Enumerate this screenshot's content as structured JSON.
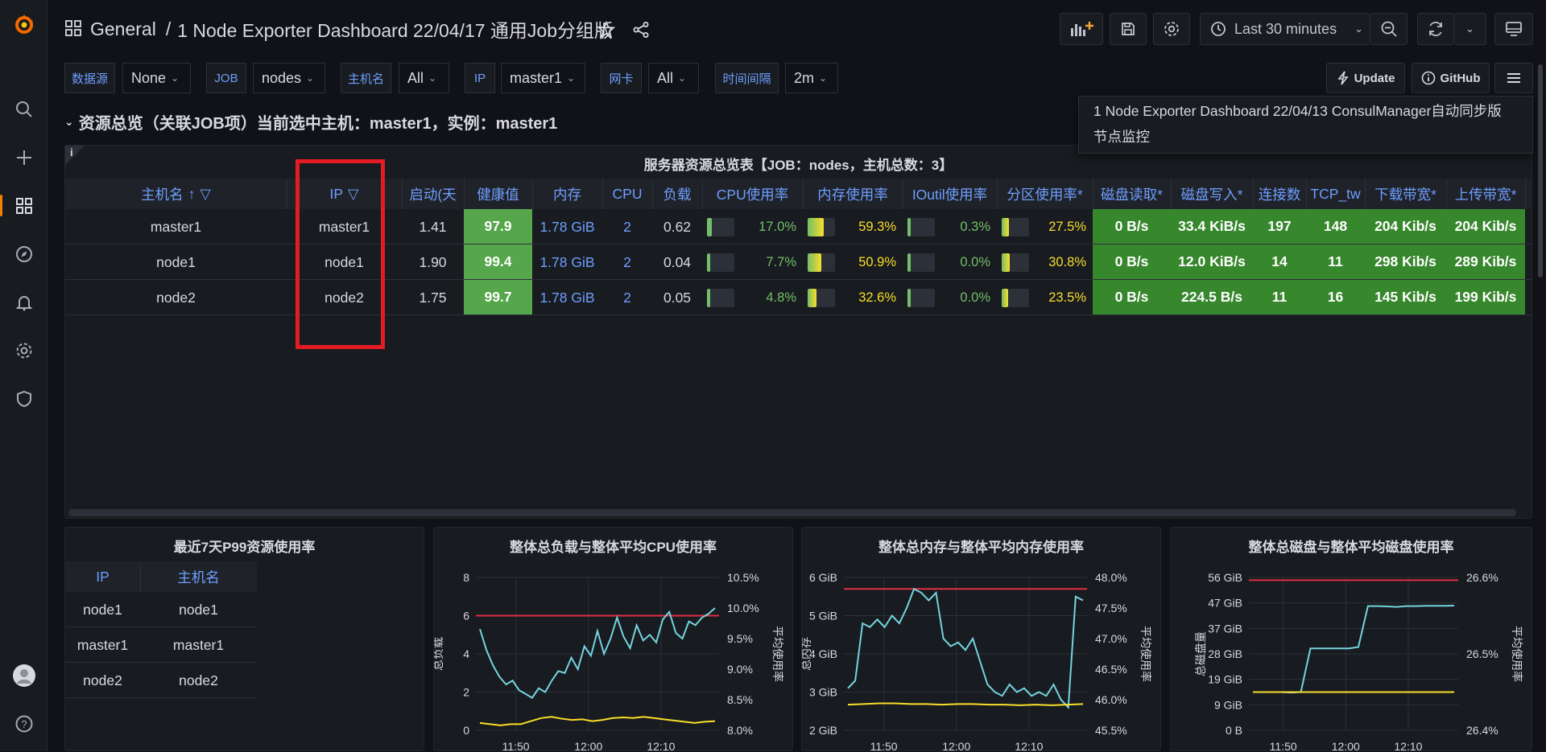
{
  "header": {
    "folder": "General",
    "separator": "/",
    "dashboard_title": "1 Node Exporter Dashboard 22/04/17 通用Job分组版",
    "time_range": "Last 30 minutes"
  },
  "variables": [
    {
      "label": "数据源",
      "value": "None"
    },
    {
      "label": "JOB",
      "value": "nodes"
    },
    {
      "label": "主机名",
      "value": "All"
    },
    {
      "label": "IP",
      "value": "master1"
    },
    {
      "label": "网卡",
      "value": "All"
    },
    {
      "label": "时间间隔",
      "value": "2m"
    }
  ],
  "links": {
    "update": "Update",
    "github": "GitHub"
  },
  "dropdown_links": [
    "1 Node Exporter Dashboard 22/04/13 ConsulManager自动同步版",
    "节点监控"
  ],
  "row_title": "资源总览（关联JOB项）当前选中主机：master1，实例：master1",
  "overview": {
    "title": "服务器资源总览表【JOB：nodes，主机总数：3】",
    "info_icon": "i",
    "columns": [
      "主机名",
      "IP",
      "启动(天",
      "健康值",
      "内存",
      "CPU",
      "负载",
      "CPU使用率",
      "内存使用率",
      "IOutil使用率",
      "分区使用率*",
      "磁盘读取*",
      "磁盘写入*",
      "连接数",
      "TCP_tw",
      "下载带宽*",
      "上传带宽*"
    ],
    "sort_indicator": "↑",
    "rows": [
      {
        "host": "master1",
        "ip": "master1",
        "uptime": "1.41",
        "health": "97.9",
        "mem": "1.78 GiB",
        "cpu": "2",
        "load": "0.62",
        "cpu_pct": "17.0%",
        "cpu_frac": 0.17,
        "mem_pct": "59.3%",
        "mem_frac": 0.593,
        "io_pct": "0.3%",
        "io_frac": 0.003,
        "part_pct": "27.5%",
        "part_frac": 0.275,
        "disk_read": "0 B/s",
        "disk_write": "33.4 KiB/s",
        "conns": "197",
        "tcp_tw": "148",
        "down": "204 Kib/s",
        "up": "204 Kib/s"
      },
      {
        "host": "node1",
        "ip": "node1",
        "uptime": "1.90",
        "health": "99.4",
        "mem": "1.78 GiB",
        "cpu": "2",
        "load": "0.04",
        "cpu_pct": "7.7%",
        "cpu_frac": 0.077,
        "mem_pct": "50.9%",
        "mem_frac": 0.509,
        "io_pct": "0.0%",
        "io_frac": 0.0,
        "part_pct": "30.8%",
        "part_frac": 0.308,
        "disk_read": "0 B/s",
        "disk_write": "12.0 KiB/s",
        "conns": "14",
        "tcp_tw": "11",
        "down": "298 Kib/s",
        "up": "289 Kib/s"
      },
      {
        "host": "node2",
        "ip": "node2",
        "uptime": "1.75",
        "health": "99.7",
        "mem": "1.78 GiB",
        "cpu": "2",
        "load": "0.05",
        "cpu_pct": "4.8%",
        "cpu_frac": 0.048,
        "mem_pct": "32.6%",
        "mem_frac": 0.326,
        "io_pct": "0.0%",
        "io_frac": 0.0,
        "part_pct": "23.5%",
        "part_frac": 0.235,
        "disk_read": "0 B/s",
        "disk_write": "224.5 B/s",
        "conns": "11",
        "tcp_tw": "16",
        "down": "145 Kib/s",
        "up": "199 Kib/s"
      }
    ]
  },
  "p99_panel": {
    "title": "最近7天P99资源使用率",
    "columns": [
      "IP",
      "主机名"
    ],
    "rows": [
      {
        "ip": "node1",
        "host": "node1"
      },
      {
        "ip": "master1",
        "host": "master1"
      },
      {
        "ip": "node2",
        "host": "node2"
      }
    ]
  },
  "colors": {
    "accent_blue": "#6e9fff",
    "health_green": "#56a64b",
    "cell_green": "#37872d",
    "threshold_red": "#e02f44",
    "series_cyan": "#73d4e0",
    "series_yellow": "#fade2a",
    "annotation_red": "#e31b23"
  },
  "chart_data": [
    {
      "type": "line",
      "title": "整体总负载与整体平均CPU使用率",
      "ylabel": "总负载",
      "y2label": "平均使用率",
      "x_ticks": [
        "11:50",
        "12:00",
        "12:10"
      ],
      "y_ticks": [
        "0",
        "2",
        "4",
        "6",
        "8"
      ],
      "y2_ticks": [
        "8.0%",
        "8.5%",
        "9.0%",
        "9.5%",
        "10.0%",
        "10.5%"
      ],
      "ylim": [
        0,
        8
      ],
      "y2lim": [
        8.0,
        10.5
      ],
      "threshold": 6,
      "series": [
        {
          "values": [
            5.3,
            4.2,
            3.4,
            2.8,
            2.4,
            2.6,
            2.1,
            1.9,
            1.7,
            2.2,
            2.0,
            2.6,
            3.1,
            3.0,
            3.8,
            3.2,
            4.4,
            3.9,
            5.2,
            4.0,
            4.8,
            5.9,
            4.9,
            4.3,
            5.5,
            4.7,
            5.0,
            4.6,
            5.8,
            6.2,
            5.1,
            4.8,
            5.7,
            5.5,
            5.9,
            6.1,
            6.4
          ]
        },
        {
          "values": [
            8.12,
            8.1,
            8.08,
            8.1,
            8.1,
            8.15,
            8.2,
            8.22,
            8.19,
            8.17,
            8.18,
            8.15,
            8.17,
            8.2,
            8.21,
            8.2,
            8.22,
            8.2,
            8.18,
            8.16,
            8.14,
            8.12,
            8.14,
            8.15
          ]
        }
      ]
    },
    {
      "type": "line",
      "title": "整体总内存与整体平均内存使用率",
      "ylabel": "总内存",
      "y2label": "平均使用率",
      "x_ticks": [
        "11:50",
        "12:00",
        "12:10"
      ],
      "y_ticks": [
        "2 GiB",
        "3 GiB",
        "4 GiB",
        "5 GiB",
        "6 GiB"
      ],
      "y2_ticks": [
        "45.5%",
        "46.0%",
        "46.5%",
        "47.0%",
        "47.5%",
        "48.0%"
      ],
      "ylim": [
        2,
        6
      ],
      "y2lim": [
        45.5,
        48.0
      ],
      "threshold": 5.7,
      "series": [
        {
          "values": [
            3.1,
            3.3,
            4.8,
            4.7,
            4.9,
            4.7,
            5.0,
            4.8,
            5.2,
            5.7,
            5.6,
            5.4,
            5.6,
            4.4,
            4.2,
            4.3,
            4.1,
            4.4,
            3.8,
            3.2,
            3.0,
            2.9,
            3.2,
            3.0,
            3.1,
            2.9,
            3.0,
            2.9,
            3.2,
            2.8,
            2.6,
            5.5,
            5.4
          ]
        },
        {
          "values": [
            45.92,
            45.93,
            45.94,
            45.94,
            45.93,
            45.93,
            45.92,
            45.93,
            45.93,
            45.92,
            45.92,
            45.91,
            45.92,
            45.91,
            45.92,
            45.93
          ]
        }
      ]
    },
    {
      "type": "line",
      "title": "整体总磁盘与整体平均磁盘使用率",
      "ylabel": "总磁盘量",
      "y2label": "平均使用率",
      "x_ticks": [
        "11:50",
        "12:00",
        "12:10"
      ],
      "y_ticks": [
        "0 B",
        "9 GiB",
        "19 GiB",
        "28 GiB",
        "37 GiB",
        "47 GiB",
        "56 GiB"
      ],
      "y2_ticks": [
        "26.4%",
        "26.5%",
        "26.6%"
      ],
      "ylim": [
        0,
        56
      ],
      "y2lim": [
        26.4,
        26.6
      ],
      "threshold": 55,
      "series": [
        {
          "values": [
            14,
            14,
            14,
            14,
            13.8,
            14,
            30,
            30,
            30,
            30,
            30,
            30.5,
            45.5,
            45.5,
            45.4,
            45.2,
            45.5,
            45.5,
            45.6,
            45.6,
            45.6,
            45.7
          ]
        },
        {
          "values": [
            26.45,
            26.45,
            26.45,
            26.45,
            26.45,
            26.45,
            26.45,
            26.45,
            26.45,
            26.45,
            26.45
          ]
        }
      ]
    }
  ]
}
